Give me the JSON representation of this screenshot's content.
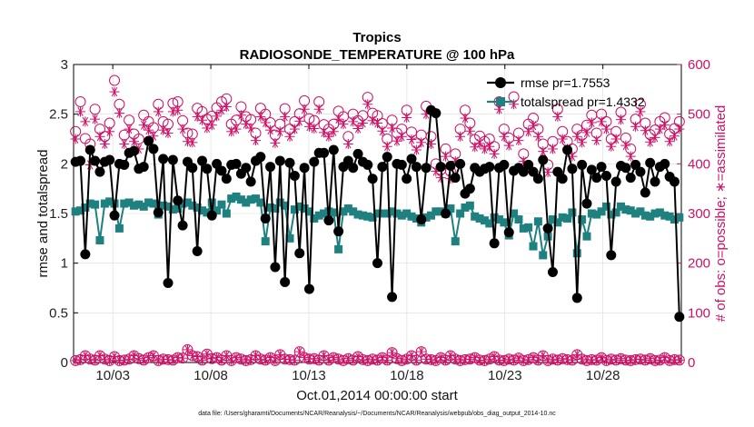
{
  "chart_data": {
    "type": "line",
    "title": "Tropics",
    "subtitle": "RADIOSONDE_TEMPERATURE @ 100 hPa",
    "xlabel": "Oct.01,2014 00:00:00 start",
    "ylabel": "rmse and totalspread",
    "ylabel_right": "# of obs: o=possible; ∗=assimilated",
    "footnote": "data file: /Users/gharamti/Documents/NCAR/Reanalysis/~/Documents/NCAR/Reanalysis/webpub/obs_diag_output_2014-10.nc",
    "xlim": [
      1,
      32
    ],
    "ylim": [
      0,
      3
    ],
    "ylim_right": [
      0,
      600
    ],
    "x_ticks": [
      3,
      8,
      13,
      18,
      23,
      28
    ],
    "x_tick_labels": [
      "10/03",
      "10/08",
      "10/13",
      "10/18",
      "10/23",
      "10/28"
    ],
    "y_ticks": [
      0,
      0.5,
      1,
      1.5,
      2,
      2.5,
      3
    ],
    "y_tick_labels": [
      "0",
      "0.5",
      "1",
      "1.5",
      "2",
      "2.5",
      "3"
    ],
    "y_ticks_right": [
      0,
      100,
      200,
      300,
      400,
      500,
      600
    ],
    "y_tick_labels_right": [
      "0",
      "100",
      "200",
      "300",
      "400",
      "500",
      "600"
    ],
    "legend": [
      "rmse pr=1.7553",
      "totalspread pr=1.4332"
    ],
    "legend_position": "top-right",
    "colors": {
      "rmse": "#000000",
      "totalspread": "#1f8080",
      "obs": "#cc1166"
    },
    "series": [
      {
        "name": "rmse",
        "values": [
          2.02,
          2.03,
          1.09,
          2.14,
          2.03,
          1.92,
          2.02,
          2.04,
          1.48,
          2.0,
          1.99,
          2.11,
          2.13,
          1.95,
          1.97,
          2.23,
          2.15,
          1.51,
          2.05,
          0.8,
          2.04,
          1.63,
          1.38,
          2.02,
          1.96,
          1.12,
          2.03,
          1.95,
          1.48,
          2.0,
          1.93,
          1.85,
          1.99,
          2.0,
          1.9,
          1.96,
          1.82,
          2.03,
          2.07,
          1.45,
          1.97,
          0.96,
          2.03,
          0.81,
          2.01,
          1.88,
          1.1,
          1.96,
          0.74,
          2.02,
          2.11,
          2.11,
          1.43,
          2.14,
          1.32,
          1.97,
          2.03,
          1.96,
          2.1,
          2.02,
          1.99,
          1.85,
          1.0,
          1.97,
          2.07,
          0.66,
          2.0,
          1.99,
          1.85,
          2.05,
          1.97,
          1.44,
          1.96,
          2.54,
          2.51,
          1.97,
          1.5,
          1.98,
          1.86,
          2.0,
          1.7,
          1.75,
          1.96,
          1.92,
          1.95,
          1.97,
          1.2,
          1.96,
          1.99,
          1.31,
          1.93,
          1.96,
          1.92,
          1.99,
          1.92,
          1.85,
          2.04,
          1.35,
          0.91,
          1.92,
          1.85,
          2.14,
          1.95,
          0.65,
          1.99,
          1.6,
          1.94,
          1.86,
          1.97,
          1.88,
          1.08,
          1.82,
          1.98,
          1.96,
          1.86,
          1.99,
          1.92,
          1.71,
          2.01,
          1.82,
          1.97,
          2.0,
          1.87,
          1.82,
          0.46
        ],
        "marker": "filled-circle"
      },
      {
        "name": "totalspread",
        "values": [
          1.52,
          1.53,
          1.56,
          1.6,
          1.59,
          1.23,
          1.6,
          1.62,
          1.6,
          1.35,
          1.6,
          1.61,
          1.58,
          1.59,
          1.57,
          1.61,
          1.6,
          1.49,
          1.58,
          1.57,
          1.54,
          1.55,
          1.6,
          1.61,
          1.58,
          1.56,
          1.53,
          1.51,
          1.61,
          1.53,
          1.59,
          1.5,
          1.65,
          1.67,
          1.64,
          1.61,
          1.64,
          1.65,
          1.61,
          1.22,
          1.56,
          1.55,
          1.61,
          1.58,
          1.25,
          1.54,
          1.57,
          1.55,
          1.52,
          1.45,
          1.48,
          1.5,
          1.52,
          1.51,
          1.14,
          1.52,
          1.55,
          1.52,
          1.49,
          1.48,
          1.47,
          1.46,
          1.5,
          1.5,
          1.5,
          1.52,
          1.5,
          1.48,
          1.5,
          1.47,
          1.45,
          1.41,
          1.46,
          1.48,
          1.52,
          1.52,
          1.5,
          1.55,
          1.22,
          1.5,
          1.56,
          1.58,
          1.47,
          1.45,
          1.43,
          1.4,
          1.46,
          1.44,
          1.41,
          1.28,
          1.5,
          1.44,
          1.35,
          1.36,
          1.17,
          1.42,
          1.08,
          1.27,
          1.44,
          1.41,
          1.46,
          1.45,
          1.51,
          1.1,
          1.44,
          1.27,
          1.5,
          1.49,
          1.52,
          1.57,
          1.49,
          1.51,
          1.57,
          1.54,
          1.53,
          1.5,
          1.52,
          1.48,
          1.47,
          1.5,
          1.51,
          1.48,
          1.47,
          1.44,
          1.46
        ],
        "marker": "filled-square"
      }
    ],
    "obs_possible": [
      465,
      525,
      451,
      440,
      510,
      470,
      455,
      482,
      568,
      520,
      458,
      488,
      460,
      450,
      498,
      485,
      473,
      520,
      485,
      480,
      522,
      525,
      487,
      462,
      460,
      512,
      505,
      490,
      496,
      513,
      525,
      531,
      480,
      488,
      515,
      495,
      489,
      462,
      512,
      500,
      483,
      458,
      480,
      511,
      470,
      485,
      501,
      527,
      491,
      487,
      525,
      479,
      470,
      480,
      506,
      495,
      455,
      500,
      487,
      497,
      534,
      502,
      497,
      481,
      450,
      488,
      462,
      470,
      508,
      464,
      442,
      458,
      516,
      455,
      400,
      388,
      430,
      385,
      420,
      470,
      508,
      482,
      449,
      456,
      445,
      450,
      435,
      525,
      470,
      452,
      535,
      462,
      420,
      480,
      492,
      470,
      440,
      398,
      445,
      510,
      465,
      445,
      430,
      470,
      458,
      478,
      498,
      462,
      500,
      485,
      450,
      465,
      504,
      452,
      430,
      490,
      520,
      482,
      459,
      468,
      485,
      493,
      460,
      471,
      485
    ],
    "obs_assimilated": [
      450,
      505,
      485,
      398,
      490,
      455,
      440,
      465,
      545,
      502,
      440,
      470,
      445,
      430,
      478,
      468,
      456,
      505,
      468,
      462,
      505,
      508,
      470,
      445,
      443,
      495,
      488,
      472,
      478,
      496,
      508,
      515,
      465,
      470,
      498,
      480,
      472,
      447,
      495,
      483,
      468,
      442,
      465,
      495,
      455,
      470,
      486,
      510,
      475,
      471,
      510,
      463,
      455,
      465,
      490,
      480,
      440,
      485,
      471,
      482,
      520,
      487,
      482,
      466,
      435,
      472,
      446,
      455,
      493,
      449,
      428,
      443,
      500,
      440,
      385,
      372,
      415,
      370,
      405,
      455,
      492,
      466,
      434,
      441,
      430,
      435,
      420,
      510,
      455,
      437,
      520,
      447,
      405,
      465,
      477,
      455,
      425,
      383,
      430,
      495,
      450,
      430,
      415,
      455,
      443,
      463,
      483,
      447,
      485,
      470,
      435,
      450,
      489,
      437,
      415,
      475,
      505,
      467,
      444,
      453,
      470,
      478,
      445,
      456,
      470
    ],
    "obs_possible_bottom": [
      2,
      4,
      12,
      5,
      3,
      12,
      5,
      2,
      10,
      2,
      3,
      5,
      12,
      6,
      3,
      8,
      12,
      2,
      5,
      4,
      3,
      8,
      7,
      24,
      12,
      10,
      3,
      15,
      6,
      8,
      3,
      12,
      2,
      8,
      5,
      2,
      4,
      12,
      5,
      3,
      8,
      2,
      14,
      5,
      4,
      3,
      20,
      8,
      5,
      6,
      3,
      12,
      3,
      8,
      5,
      2,
      6,
      3,
      10,
      4,
      2,
      5,
      3,
      8,
      3,
      18,
      6,
      2,
      5,
      12,
      3,
      20,
      5,
      4,
      2,
      8,
      3,
      12,
      5,
      2,
      4,
      5,
      8,
      3,
      2,
      5,
      10,
      3,
      2,
      5,
      3,
      7,
      2,
      4,
      8,
      3,
      12,
      2,
      5,
      3,
      6,
      4,
      3,
      14,
      5,
      2,
      4,
      3,
      8,
      2,
      5,
      3,
      6,
      3,
      2,
      4,
      5,
      3,
      6,
      2,
      3,
      8,
      2,
      4,
      3
    ],
    "obs_assimilated_bottom": [
      2,
      4,
      12,
      5,
      3,
      12,
      5,
      2,
      10,
      2,
      3,
      5,
      12,
      6,
      3,
      8,
      12,
      2,
      5,
      4,
      3,
      8,
      7,
      24,
      12,
      10,
      3,
      15,
      6,
      8,
      3,
      12,
      2,
      8,
      5,
      2,
      4,
      12,
      5,
      3,
      8,
      2,
      14,
      5,
      4,
      3,
      20,
      8,
      5,
      6,
      3,
      12,
      3,
      8,
      5,
      2,
      6,
      3,
      10,
      4,
      2,
      5,
      3,
      8,
      3,
      18,
      6,
      2,
      5,
      12,
      3,
      20,
      5,
      4,
      2,
      8,
      3,
      12,
      5,
      2,
      4,
      5,
      8,
      3,
      2,
      5,
      10,
      3,
      2,
      5,
      3,
      7,
      2,
      4,
      8,
      3,
      12,
      2,
      5,
      3,
      6,
      4,
      3,
      14,
      5,
      2,
      4,
      3,
      8,
      2,
      5,
      3,
      6,
      3,
      2,
      4,
      5,
      3,
      6,
      2,
      3,
      8,
      2,
      4,
      3
    ]
  }
}
